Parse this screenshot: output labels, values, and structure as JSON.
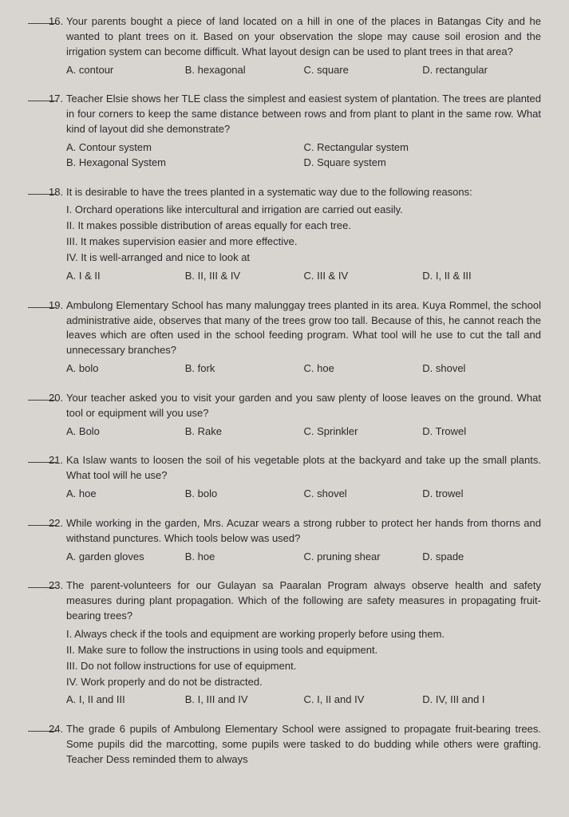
{
  "background_color": "#d8d4d0",
  "text_color": "#2a2a2a",
  "font_family": "Arial, Helvetica, sans-serif",
  "base_font_size": 13,
  "questions": [
    {
      "num": "16.",
      "text": "Your parents bought a piece of land located on a hill in one of the places in Batangas City and he wanted to plant trees on it. Based on your observation the slope may cause soil erosion and the irrigation system can become difficult. What layout design can be used to plant trees in that area?",
      "choices": [
        "A. contour",
        "B. hexagonal",
        "C. square",
        "D. rectangular"
      ]
    },
    {
      "num": "17.",
      "text": "Teacher Elsie shows her TLE class the simplest and easiest system of plantation. The trees are planted in four corners to keep the same distance between rows and from plant to plant in the same row. What kind of layout did she demonstrate?",
      "choices2col": {
        "left": [
          "A. Contour system",
          "B. Hexagonal System"
        ],
        "right": [
          "C. Rectangular system",
          "D. Square system"
        ]
      }
    },
    {
      "num": "18.",
      "text": "It is desirable to have the trees planted in a systematic way due to the following reasons:",
      "sublist": [
        "I. Orchard operations like intercultural and irrigation are carried out easily.",
        "II. It makes possible distribution of areas equally for each tree.",
        "III. It makes supervision easier and more effective.",
        "IV. It is well-arranged and nice to look at"
      ],
      "choices": [
        "A. I & II",
        "B. II, III & IV",
        "C. III & IV",
        "D. I, II & III"
      ]
    },
    {
      "num": "19.",
      "text": "Ambulong Elementary School has many malunggay trees planted in its area. Kuya Rommel, the school administrative aide, observes that many of the trees grow too tall. Because of this, he cannot reach the leaves which are often used in the school feeding program. What tool will he use to cut the tall and unnecessary branches?",
      "choices": [
        "A. bolo",
        "B. fork",
        "C. hoe",
        "D. shovel"
      ]
    },
    {
      "num": "20.",
      "text": "Your teacher asked you to visit your garden and you saw plenty of loose leaves on the ground. What tool or equipment will you use?",
      "choices": [
        "A. Bolo",
        "B. Rake",
        "C. Sprinkler",
        "D. Trowel"
      ]
    },
    {
      "num": "21.",
      "text": "Ka Islaw wants to loosen the soil of his vegetable plots at the backyard and take up the small plants. What tool will he use?",
      "choices": [
        "A. hoe",
        "B. bolo",
        "C. shovel",
        "D. trowel"
      ]
    },
    {
      "num": "22.",
      "text": "While working in the garden, Mrs. Acuzar wears a strong rubber to protect her hands from thorns and withstand punctures. Which tools below was used?",
      "choices": [
        "A. garden gloves",
        "B. hoe",
        "C. pruning shear",
        "D. spade"
      ]
    },
    {
      "num": "23.",
      "text": "The parent-volunteers for our Gulayan sa Paaralan Program always observe health and safety measures during plant propagation. Which of the following are safety measures in propagating fruit-bearing trees?",
      "sublist": [
        "I. Always check if the tools and equipment are working properly before using them.",
        "II. Make sure to follow the instructions in using tools and equipment.",
        "III. Do not follow instructions for use of equipment.",
        "IV. Work properly and do not be distracted."
      ],
      "choices": [
        "A. I, II and III",
        "B. I, III and IV",
        "C. I, II and IV",
        "D. IV, III and I"
      ]
    },
    {
      "num": "24.",
      "text": "The grade 6 pupils of Ambulong Elementary School were assigned to propagate fruit-bearing trees. Some pupils did the marcotting, some pupils were tasked to do budding while others were grafting. Teacher Dess reminded them to always"
    }
  ]
}
